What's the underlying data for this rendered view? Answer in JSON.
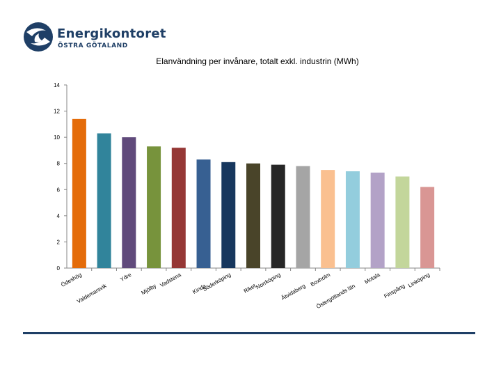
{
  "logo": {
    "name": "Energikontoret",
    "subtitle": "ÖSTRA GÖTALAND",
    "icon": "swirl-logo-icon",
    "color": "#1f3f66"
  },
  "chart_data": {
    "type": "bar",
    "title": "Elanvändning per invånare, totalt exkl. industrin (MWh)",
    "xlabel": "",
    "ylabel": "",
    "ylim": [
      0,
      14
    ],
    "yticks": [
      0,
      2,
      4,
      6,
      8,
      10,
      12,
      14
    ],
    "grid": false,
    "categories": [
      "Ödeshög",
      "Valdemarsvik",
      "Ydre",
      "Mjölby",
      "Vadstena",
      "Kinda",
      "Söderköping",
      "Riket",
      "Norrköping",
      "Åtvidaberg",
      "Boxholm",
      "Östergötlands län",
      "Motala",
      "Finspång",
      "Linköping"
    ],
    "values": [
      11.4,
      10.3,
      10.0,
      9.3,
      9.2,
      8.3,
      8.1,
      8.0,
      7.9,
      7.8,
      7.5,
      7.4,
      7.3,
      7.0,
      6.2
    ],
    "colors": [
      "#e46c0a",
      "#31849b",
      "#604a7b",
      "#77933c",
      "#953735",
      "#376092",
      "#17375e",
      "#494429",
      "#262626",
      "#a5a5a5",
      "#fac090",
      "#93cddd",
      "#b3a2c7",
      "#c3d69b",
      "#d99694"
    ]
  }
}
